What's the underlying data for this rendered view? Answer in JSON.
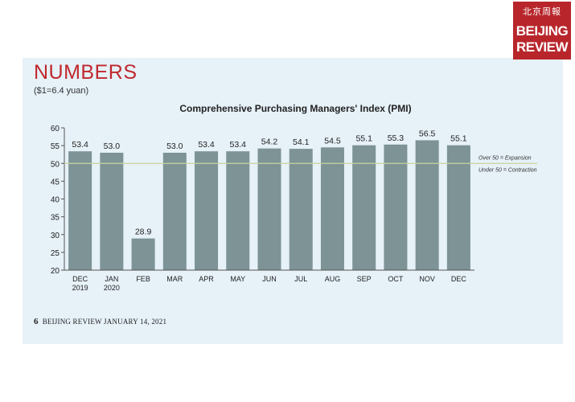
{
  "logo": {
    "chinese": "北京周報",
    "line1": "BEIJING",
    "line2": "REVIEW"
  },
  "header": {
    "title": "NUMBERS",
    "subtitle": "($1=6.4 yuan)"
  },
  "footer": {
    "page_number": "6",
    "text": "BEIJING REVIEW JANUARY 14, 2021"
  },
  "colors": {
    "bar": "#7d9396",
    "accent": "#c0282e",
    "reference_line": "#c8d49a"
  },
  "chart_data": {
    "type": "bar",
    "title": "Comprehensive Purchasing Managers' Index (PMI)",
    "categories": [
      [
        "DEC",
        "2019"
      ],
      [
        "JAN",
        "2020"
      ],
      [
        "FEB"
      ],
      [
        "MAR"
      ],
      [
        "APR"
      ],
      [
        "MAY"
      ],
      [
        "JUN"
      ],
      [
        "JUL"
      ],
      [
        "AUG"
      ],
      [
        "SEP"
      ],
      [
        "OCT"
      ],
      [
        "NOV"
      ],
      [
        "DEC"
      ]
    ],
    "values": [
      53.4,
      53.0,
      28.9,
      53.0,
      53.4,
      53.4,
      54.2,
      54.1,
      54.5,
      55.1,
      55.3,
      56.5,
      55.1
    ],
    "value_labels": [
      "53.4",
      "53.0",
      "28.9",
      "53.0",
      "53.4",
      "53.4",
      "54.2",
      "54.1",
      "54.5",
      "55.1",
      "55.3",
      "56.5",
      "55.1"
    ],
    "ylim": [
      20,
      60
    ],
    "yticks": [
      20,
      25,
      30,
      35,
      40,
      45,
      50,
      55,
      60
    ],
    "reference_line": {
      "value": 50,
      "label_above": "Over 50 = Expansion",
      "label_below": "Under 50 = Contraction"
    },
    "xlabel": "",
    "ylabel": ""
  }
}
